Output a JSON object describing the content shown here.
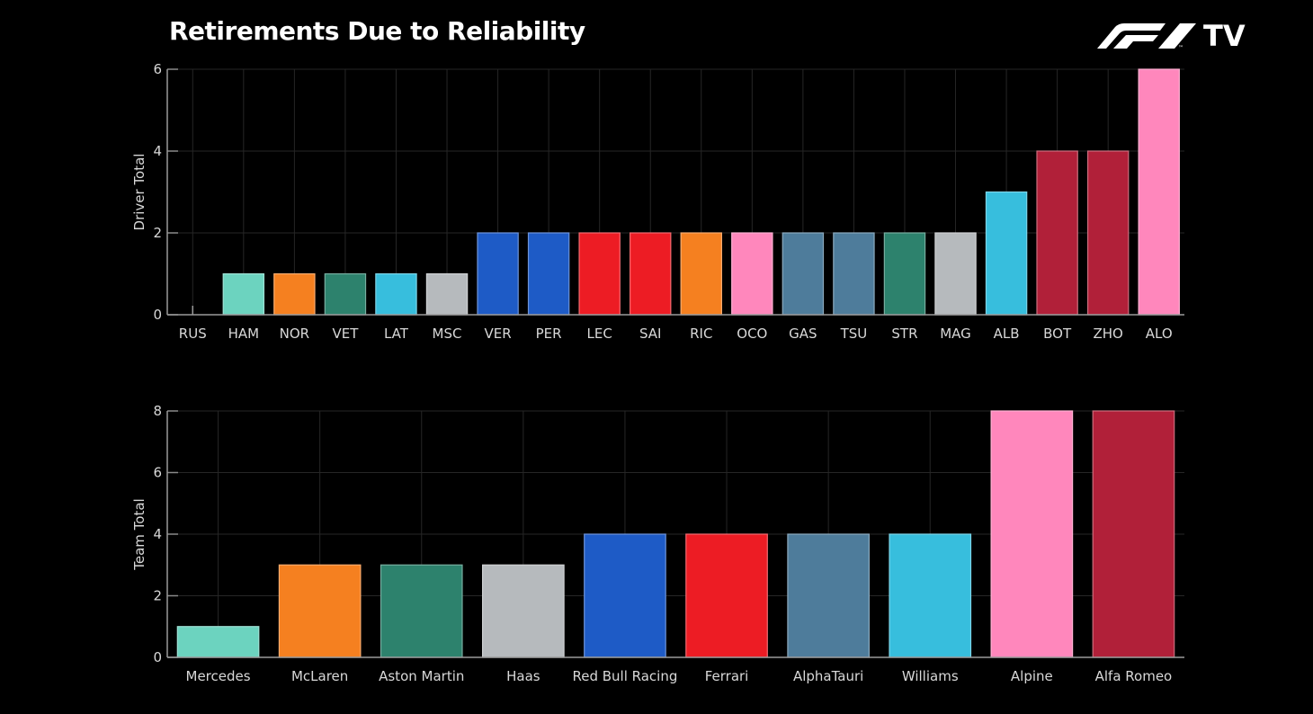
{
  "header": {
    "title": "Retirements Due to Reliability",
    "logo_text": "TV",
    "logo_mark": "F1"
  },
  "chart_data": [
    {
      "type": "bar",
      "title": "",
      "xlabel": "",
      "ylabel": "Driver Total",
      "ylim": [
        0,
        6
      ],
      "yticks": [
        0,
        2,
        4,
        6
      ],
      "grid": true,
      "categories": [
        "RUS",
        "HAM",
        "NOR",
        "VET",
        "LAT",
        "MSC",
        "VER",
        "PER",
        "LEC",
        "SAI",
        "RIC",
        "OCO",
        "GAS",
        "TSU",
        "STR",
        "MAG",
        "ALB",
        "BOT",
        "ZHO",
        "ALO"
      ],
      "values": [
        0,
        1,
        1,
        1,
        1,
        1,
        2,
        2,
        2,
        2,
        2,
        2,
        2,
        2,
        2,
        2,
        3,
        4,
        4,
        6
      ],
      "colors": [
        "#6cd3bf",
        "#6cd3bf",
        "#f58020",
        "#2d826d",
        "#37bedd",
        "#b6babd",
        "#1e5bc6",
        "#1e5bc6",
        "#ed1c24",
        "#ed1c24",
        "#f58020",
        "#ff87bc",
        "#4e7c9b",
        "#4e7c9b",
        "#2d826d",
        "#b6babd",
        "#37bedd",
        "#b12039",
        "#b12039",
        "#ff87bc"
      ]
    },
    {
      "type": "bar",
      "title": "",
      "xlabel": "",
      "ylabel": "Team Total",
      "ylim": [
        0,
        8
      ],
      "yticks": [
        0,
        2,
        4,
        6,
        8
      ],
      "grid": true,
      "categories": [
        "Mercedes",
        "McLaren",
        "Aston Martin",
        "Haas",
        "Red Bull Racing",
        "Ferrari",
        "AlphaTauri",
        "Williams",
        "Alpine",
        "Alfa Romeo"
      ],
      "values": [
        1,
        3,
        3,
        3,
        4,
        4,
        4,
        4,
        8,
        8
      ],
      "colors": [
        "#6cd3bf",
        "#f58020",
        "#2d826d",
        "#b6babd",
        "#1e5bc6",
        "#ed1c24",
        "#4e7c9b",
        "#37bedd",
        "#ff87bc",
        "#b12039"
      ]
    }
  ]
}
